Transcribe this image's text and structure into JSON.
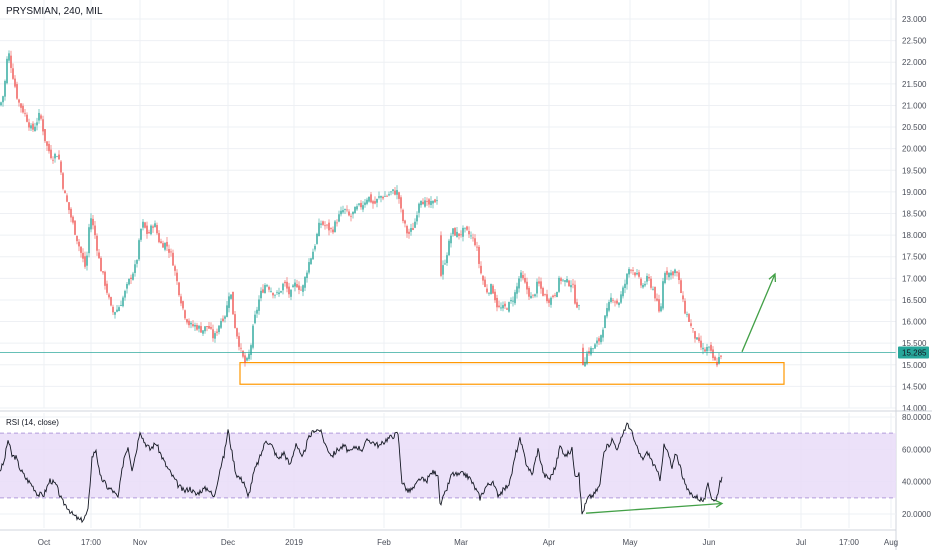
{
  "chart_data": [
    {
      "type": "candlestick",
      "title": "PRYSMIAN, 240, MIL",
      "y_tick_labels": [
        "23.000",
        "22.500",
        "22.000",
        "21.500",
        "21.000",
        "20.500",
        "20.000",
        "19.500",
        "19.000",
        "18.500",
        "18.000",
        "17.500",
        "17.000",
        "16.500",
        "16.000",
        "15.500",
        "15.000",
        "14.500",
        "14.000"
      ],
      "ylim": [
        14.0,
        23.0
      ],
      "last_price": "15.285",
      "last_price_value": 15.285,
      "x_tick_labels": [
        "Oct",
        "17:00",
        "Nov",
        "Dec",
        "2019",
        "Feb",
        "Mar",
        "Apr",
        "May",
        "Jun",
        "Jul",
        "17:00",
        "Aug"
      ],
      "close_path": [
        [
          0,
          21.0
        ],
        [
          4,
          21.3
        ],
        [
          8,
          22.3
        ],
        [
          12,
          21.8
        ],
        [
          18,
          21.1
        ],
        [
          25,
          20.8
        ],
        [
          32,
          20.4
        ],
        [
          40,
          20.8
        ],
        [
          46,
          20.1
        ],
        [
          52,
          19.8
        ],
        [
          58,
          19.9
        ],
        [
          64,
          19.0
        ],
        [
          70,
          18.5
        ],
        [
          76,
          18.0
        ],
        [
          82,
          17.5
        ],
        [
          86,
          17.2
        ],
        [
          90,
          18.5
        ],
        [
          95,
          18.0
        ],
        [
          100,
          17.3
        ],
        [
          106,
          16.8
        ],
        [
          112,
          16.2
        ],
        [
          118,
          16.3
        ],
        [
          124,
          16.6
        ],
        [
          130,
          17.0
        ],
        [
          136,
          17.3
        ],
        [
          142,
          18.3
        ],
        [
          148,
          18.0
        ],
        [
          154,
          18.3
        ],
        [
          160,
          17.8
        ],
        [
          166,
          17.8
        ],
        [
          172,
          17.5
        ],
        [
          178,
          16.8
        ],
        [
          184,
          16.2
        ],
        [
          190,
          15.9
        ],
        [
          196,
          15.9
        ],
        [
          202,
          15.8
        ],
        [
          208,
          15.9
        ],
        [
          214,
          15.6
        ],
        [
          220,
          16.0
        ],
        [
          226,
          16.2
        ],
        [
          230,
          16.8
        ],
        [
          234,
          16.0
        ],
        [
          238,
          15.6
        ],
        [
          242,
          15.2
        ],
        [
          246,
          15.0
        ],
        [
          250,
          15.3
        ],
        [
          254,
          16.0
        ],
        [
          260,
          16.6
        ],
        [
          266,
          16.9
        ],
        [
          272,
          16.7
        ],
        [
          278,
          16.6
        ],
        [
          284,
          16.9
        ],
        [
          290,
          16.6
        ],
        [
          296,
          16.9
        ],
        [
          302,
          16.7
        ],
        [
          308,
          17.3
        ],
        [
          314,
          17.7
        ],
        [
          320,
          18.3
        ],
        [
          326,
          18.2
        ],
        [
          332,
          18.1
        ],
        [
          338,
          18.4
        ],
        [
          344,
          18.6
        ],
        [
          350,
          18.4
        ],
        [
          356,
          18.6
        ],
        [
          362,
          18.7
        ],
        [
          368,
          18.9
        ],
        [
          374,
          18.7
        ],
        [
          380,
          18.9
        ],
        [
          386,
          18.9
        ],
        [
          392,
          19.0
        ],
        [
          398,
          19.0
        ],
        [
          402,
          18.4
        ],
        [
          408,
          18.0
        ],
        [
          414,
          18.2
        ],
        [
          420,
          18.9
        ],
        [
          426,
          18.7
        ],
        [
          432,
          18.7
        ],
        [
          438,
          18.9
        ],
        [
          440,
          17.0
        ],
        [
          446,
          17.5
        ],
        [
          452,
          18.1
        ],
        [
          458,
          18.0
        ],
        [
          464,
          18.1
        ],
        [
          470,
          18.0
        ],
        [
          476,
          17.8
        ],
        [
          480,
          17.2
        ],
        [
          486,
          16.7
        ],
        [
          492,
          16.8
        ],
        [
          498,
          16.3
        ],
        [
          504,
          16.3
        ],
        [
          510,
          16.4
        ],
        [
          516,
          16.7
        ],
        [
          520,
          17.1
        ],
        [
          526,
          16.8
        ],
        [
          532,
          16.5
        ],
        [
          538,
          16.9
        ],
        [
          544,
          16.6
        ],
        [
          550,
          16.5
        ],
        [
          556,
          16.7
        ],
        [
          560,
          17.0
        ],
        [
          566,
          16.9
        ],
        [
          572,
          16.9
        ],
        [
          575,
          16.5
        ],
        [
          579,
          16.3
        ],
        [
          582,
          15.0
        ],
        [
          588,
          15.3
        ],
        [
          594,
          15.4
        ],
        [
          600,
          15.6
        ],
        [
          604,
          16.0
        ],
        [
          608,
          16.3
        ],
        [
          612,
          16.6
        ],
        [
          618,
          16.4
        ],
        [
          624,
          16.8
        ],
        [
          630,
          17.3
        ],
        [
          636,
          17.1
        ],
        [
          642,
          16.8
        ],
        [
          648,
          17.0
        ],
        [
          654,
          16.7
        ],
        [
          660,
          16.1
        ],
        [
          664,
          17.2
        ],
        [
          670,
          17.1
        ],
        [
          676,
          17.2
        ],
        [
          680,
          16.8
        ],
        [
          684,
          16.3
        ],
        [
          688,
          16.1
        ],
        [
          692,
          15.8
        ],
        [
          698,
          15.5
        ],
        [
          704,
          15.3
        ],
        [
          708,
          15.4
        ],
        [
          712,
          15.2
        ],
        [
          716,
          15.0
        ],
        [
          720,
          15.2
        ],
        [
          722,
          15.285
        ]
      ],
      "annotations": {
        "support_zone": {
          "x_start": 240,
          "x_end": 784,
          "y_low": 14.55,
          "y_high": 15.05,
          "color": "#ff9800"
        },
        "projection_arrow": {
          "x_from": 742,
          "y_from": 15.3,
          "x_to": 775,
          "y_to": 17.1,
          "color": "#43a047"
        },
        "price_line_color": "#26a69a"
      }
    },
    {
      "type": "line",
      "title": "RSI (14, close)",
      "y_tick_labels": [
        "80.0000",
        "60.0000",
        "40.0000",
        "20.0000"
      ],
      "ylim": [
        10,
        85
      ],
      "band": {
        "upper": 70,
        "lower": 30,
        "fill": "#e9dcf8"
      },
      "rsi_path": [
        [
          0,
          47
        ],
        [
          4,
          52
        ],
        [
          8,
          66
        ],
        [
          12,
          56
        ],
        [
          16,
          55
        ],
        [
          20,
          48
        ],
        [
          26,
          42
        ],
        [
          32,
          38
        ],
        [
          38,
          32
        ],
        [
          44,
          32
        ],
        [
          50,
          41
        ],
        [
          56,
          38
        ],
        [
          62,
          28
        ],
        [
          68,
          24
        ],
        [
          72,
          20
        ],
        [
          76,
          18
        ],
        [
          80,
          16
        ],
        [
          84,
          17
        ],
        [
          88,
          22
        ],
        [
          92,
          55
        ],
        [
          96,
          60
        ],
        [
          100,
          43
        ],
        [
          104,
          40
        ],
        [
          108,
          36
        ],
        [
          112,
          35
        ],
        [
          118,
          30
        ],
        [
          124,
          55
        ],
        [
          128,
          62
        ],
        [
          132,
          48
        ],
        [
          136,
          58
        ],
        [
          140,
          72
        ],
        [
          144,
          65
        ],
        [
          150,
          60
        ],
        [
          156,
          64
        ],
        [
          160,
          58
        ],
        [
          166,
          50
        ],
        [
          172,
          44
        ],
        [
          178,
          38
        ],
        [
          184,
          34
        ],
        [
          190,
          36
        ],
        [
          196,
          32
        ],
        [
          202,
          35
        ],
        [
          208,
          36
        ],
        [
          214,
          30
        ],
        [
          220,
          48
        ],
        [
          224,
          56
        ],
        [
          228,
          72
        ],
        [
          232,
          58
        ],
        [
          236,
          45
        ],
        [
          240,
          42
        ],
        [
          244,
          40
        ],
        [
          248,
          30
        ],
        [
          254,
          46
        ],
        [
          260,
          55
        ],
        [
          266,
          66
        ],
        [
          272,
          62
        ],
        [
          278,
          54
        ],
        [
          284,
          58
        ],
        [
          290,
          50
        ],
        [
          296,
          64
        ],
        [
          302,
          54
        ],
        [
          308,
          66
        ],
        [
          314,
          72
        ],
        [
          320,
          72
        ],
        [
          326,
          62
        ],
        [
          332,
          56
        ],
        [
          338,
          60
        ],
        [
          344,
          62
        ],
        [
          350,
          58
        ],
        [
          356,
          62
        ],
        [
          362,
          60
        ],
        [
          368,
          66
        ],
        [
          374,
          64
        ],
        [
          380,
          62
        ],
        [
          386,
          66
        ],
        [
          392,
          68
        ],
        [
          398,
          70
        ],
        [
          402,
          40
        ],
        [
          408,
          34
        ],
        [
          414,
          36
        ],
        [
          420,
          42
        ],
        [
          426,
          40
        ],
        [
          432,
          46
        ],
        [
          438,
          45
        ],
        [
          440,
          25
        ],
        [
          446,
          34
        ],
        [
          452,
          45
        ],
        [
          458,
          44
        ],
        [
          464,
          45
        ],
        [
          470,
          42
        ],
        [
          476,
          35
        ],
        [
          480,
          30
        ],
        [
          486,
          37
        ],
        [
          492,
          40
        ],
        [
          498,
          32
        ],
        [
          504,
          35
        ],
        [
          510,
          40
        ],
        [
          516,
          58
        ],
        [
          520,
          66
        ],
        [
          526,
          52
        ],
        [
          532,
          44
        ],
        [
          538,
          60
        ],
        [
          544,
          44
        ],
        [
          550,
          42
        ],
        [
          556,
          50
        ],
        [
          560,
          62
        ],
        [
          566,
          56
        ],
        [
          572,
          60
        ],
        [
          575,
          45
        ],
        [
          579,
          44
        ],
        [
          582,
          20
        ],
        [
          588,
          30
        ],
        [
          594,
          32
        ],
        [
          600,
          38
        ],
        [
          604,
          60
        ],
        [
          608,
          62
        ],
        [
          612,
          66
        ],
        [
          618,
          60
        ],
        [
          624,
          72
        ],
        [
          628,
          76
        ],
        [
          632,
          70
        ],
        [
          636,
          62
        ],
        [
          642,
          54
        ],
        [
          648,
          58
        ],
        [
          654,
          50
        ],
        [
          660,
          42
        ],
        [
          664,
          62
        ],
        [
          668,
          58
        ],
        [
          672,
          48
        ],
        [
          676,
          58
        ],
        [
          680,
          50
        ],
        [
          684,
          40
        ],
        [
          688,
          34
        ],
        [
          692,
          32
        ],
        [
          698,
          30
        ],
        [
          704,
          28
        ],
        [
          708,
          38
        ],
        [
          712,
          30
        ],
        [
          716,
          28
        ],
        [
          720,
          40
        ],
        [
          722,
          43
        ]
      ],
      "divergence_arrow": {
        "x_from": 586,
        "y_from": 20.5,
        "x_to": 722,
        "y_to": 26.5,
        "color": "#43a047"
      }
    }
  ],
  "colors": {
    "up": "#26a69a",
    "down": "#ef5350",
    "grid": "#eef0f4",
    "axis_text": "#4a4e59",
    "rsi_line": "#131722",
    "band_border": "#b39ddb",
    "price_label_bg": "#26a69a"
  }
}
